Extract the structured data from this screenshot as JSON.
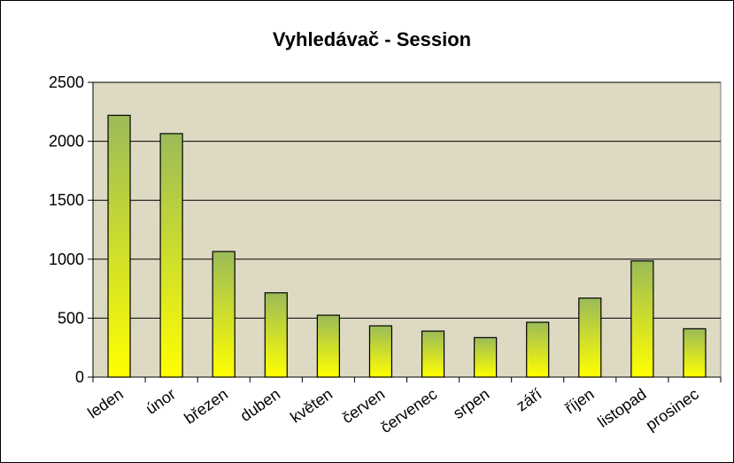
{
  "chart_data": {
    "type": "bar",
    "title": "Vyhledávač - Session",
    "xlabel": "",
    "ylabel": "",
    "categories": [
      "leden",
      "únor",
      "březen",
      "duben",
      "květen",
      "červen",
      "červenec",
      "srpen",
      "září",
      "říjen",
      "listopad",
      "prosinec"
    ],
    "values": [
      2220,
      2065,
      1065,
      715,
      525,
      435,
      390,
      335,
      465,
      670,
      985,
      410
    ],
    "ylim": [
      0,
      2500
    ],
    "yticks": [
      "0",
      "500",
      "1000",
      "1500",
      "2000",
      "2500"
    ],
    "grid": true,
    "legend": "none",
    "colors": {
      "plot_bg": "#DDD9C3",
      "bar_top": "#9BBB59",
      "bar_bottom": "#FFFF00",
      "bar_border": "#000000",
      "grid": "#000000"
    }
  }
}
